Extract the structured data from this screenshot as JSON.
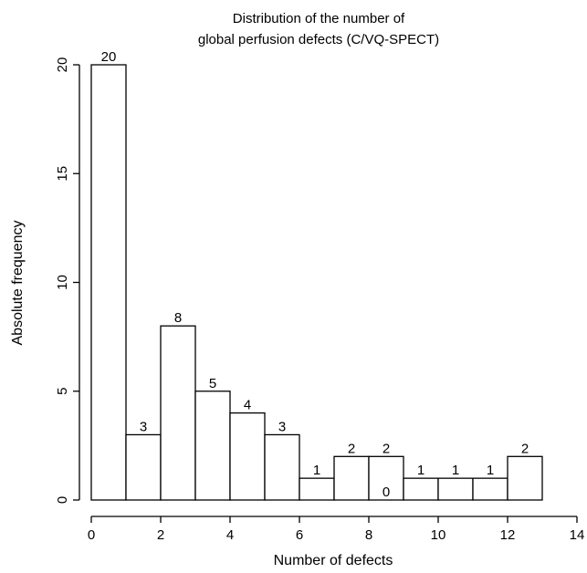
{
  "chart_data": {
    "type": "bar",
    "title": "Distribution of the number of global perfusion defects (C/VQ-SPECT)",
    "title_lines": [
      "Distribution of the number of",
      "global perfusion defects (C/VQ-SPECT)"
    ],
    "xlabel": "Number of defects",
    "ylabel": "Absolute frequency",
    "bins": [
      {
        "from": 0,
        "to": 1,
        "value": 20
      },
      {
        "from": 1,
        "to": 2,
        "value": 3
      },
      {
        "from": 2,
        "to": 3,
        "value": 8
      },
      {
        "from": 3,
        "to": 4,
        "value": 5
      },
      {
        "from": 4,
        "to": 5,
        "value": 4
      },
      {
        "from": 5,
        "to": 6,
        "value": 3
      },
      {
        "from": 6,
        "to": 7,
        "value": 1
      },
      {
        "from": 7,
        "to": 8,
        "value": 2
      },
      {
        "from": 8,
        "to": 9,
        "value": 2
      },
      {
        "from": 9,
        "to": 10,
        "value": 1
      },
      {
        "from": 10,
        "to": 11,
        "value": 1
      },
      {
        "from": 11,
        "to": 12,
        "value": 1
      },
      {
        "from": 12,
        "to": 13,
        "value": 2
      }
    ],
    "extra_labels": [
      {
        "x": 8.5,
        "text": "0"
      }
    ],
    "xlim": [
      0,
      14
    ],
    "ylim": [
      0,
      20
    ],
    "xticks": [
      0,
      2,
      4,
      6,
      8,
      10,
      12,
      14
    ],
    "yticks": [
      0,
      5,
      10,
      15,
      20
    ],
    "grid": false,
    "legend": "none"
  }
}
